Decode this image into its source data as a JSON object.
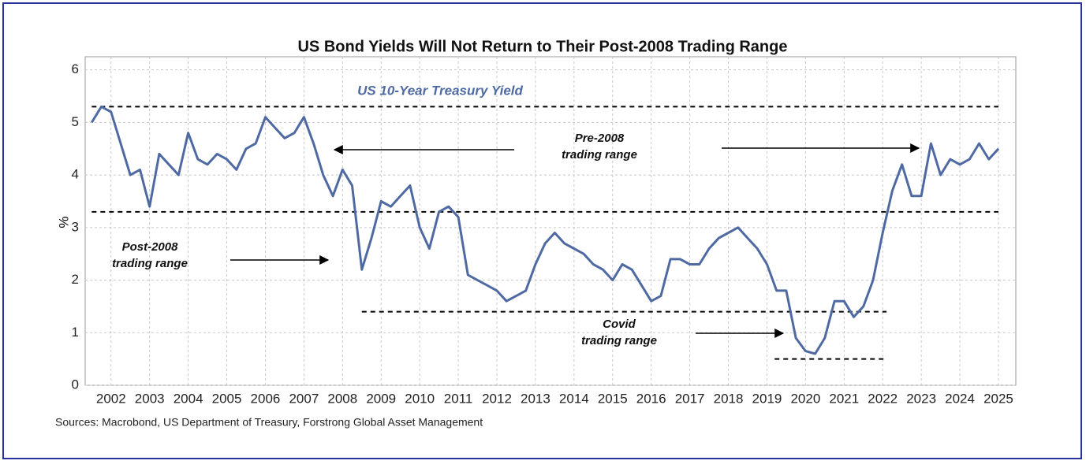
{
  "chart_data": {
    "type": "line",
    "title": "US Bond Yields Will Not Return to Their Post-2008 Trading Range",
    "y_label": "%",
    "source": "Sources: Macrobond, US Department of Treasury, Forstrong Global Asset Management",
    "x": [
      2001.5,
      2001.75,
      2002,
      2002.25,
      2002.5,
      2002.75,
      2003,
      2003.25,
      2003.5,
      2003.75,
      2004,
      2004.25,
      2004.5,
      2004.75,
      2005,
      2005.25,
      2005.5,
      2005.75,
      2006,
      2006.25,
      2006.5,
      2006.75,
      2007,
      2007.25,
      2007.5,
      2007.75,
      2008,
      2008.25,
      2008.5,
      2008.75,
      2009,
      2009.25,
      2009.5,
      2009.75,
      2010,
      2010.25,
      2010.5,
      2010.75,
      2011,
      2011.25,
      2011.5,
      2011.75,
      2012,
      2012.25,
      2012.5,
      2012.75,
      2013,
      2013.25,
      2013.5,
      2013.75,
      2014,
      2014.25,
      2014.5,
      2014.75,
      2015,
      2015.25,
      2015.5,
      2015.75,
      2016,
      2016.25,
      2016.5,
      2016.75,
      2017,
      2017.25,
      2017.5,
      2017.75,
      2018,
      2018.25,
      2018.5,
      2018.75,
      2019,
      2019.25,
      2019.5,
      2019.75,
      2020,
      2020.25,
      2020.5,
      2020.75,
      2021,
      2021.25,
      2021.5,
      2021.75,
      2022,
      2022.25,
      2022.5,
      2022.75,
      2023,
      2023.25,
      2023.5,
      2023.75,
      2024,
      2024.25,
      2024.5,
      2024.75,
      2025
    ],
    "series": [
      {
        "name": "US 10-Year Treasury Yield",
        "color": "#4f6aa3",
        "values": [
          5.0,
          5.3,
          5.2,
          4.6,
          4.0,
          4.1,
          3.4,
          4.4,
          4.2,
          4.0,
          4.8,
          4.3,
          4.2,
          4.4,
          4.3,
          4.1,
          4.5,
          4.6,
          5.1,
          4.9,
          4.7,
          4.8,
          5.1,
          4.6,
          4.0,
          3.6,
          4.1,
          3.8,
          2.2,
          2.8,
          3.5,
          3.4,
          3.6,
          3.8,
          3.0,
          2.6,
          3.3,
          3.4,
          3.2,
          2.1,
          2.0,
          1.9,
          1.8,
          1.6,
          1.7,
          1.8,
          2.3,
          2.7,
          2.9,
          2.7,
          2.6,
          2.5,
          2.3,
          2.2,
          2.0,
          2.3,
          2.2,
          1.9,
          1.6,
          1.7,
          2.4,
          2.4,
          2.3,
          2.3,
          2.6,
          2.8,
          2.9,
          3.0,
          2.8,
          2.6,
          2.3,
          1.8,
          1.8,
          0.9,
          0.65,
          0.6,
          0.9,
          1.6,
          1.6,
          1.3,
          1.5,
          2.0,
          2.9,
          3.7,
          4.2,
          3.6,
          3.6,
          4.6,
          4.0,
          4.3,
          4.2,
          4.3,
          4.6,
          4.3,
          4.5
        ]
      }
    ],
    "xlim": [
      2001.33,
      2025.45
    ],
    "xticks": [
      2002,
      2003,
      2004,
      2005,
      2006,
      2007,
      2008,
      2009,
      2010,
      2011,
      2012,
      2013,
      2014,
      2015,
      2016,
      2017,
      2018,
      2019,
      2020,
      2021,
      2022,
      2023,
      2024,
      2025
    ],
    "ylim": [
      0,
      6.25
    ],
    "yticks": [
      0,
      1,
      2,
      3,
      4,
      5,
      6
    ],
    "grid": true,
    "reference_lines": [
      {
        "y": 5.3,
        "x": [
          2001.5,
          2025.0
        ]
      },
      {
        "y": 3.3,
        "x": [
          2001.5,
          2025.0
        ]
      },
      {
        "y": 1.4,
        "x": [
          2008.5,
          2022.1
        ]
      },
      {
        "y": 0.5,
        "x": [
          2019.2,
          2022.1
        ]
      }
    ],
    "annotations": [
      {
        "lines": [
          "Pre-2008",
          "trading range"
        ]
      },
      {
        "lines": [
          "Post-2008",
          "trading range"
        ]
      },
      {
        "lines": [
          "Covid",
          "trading range"
        ]
      }
    ]
  }
}
